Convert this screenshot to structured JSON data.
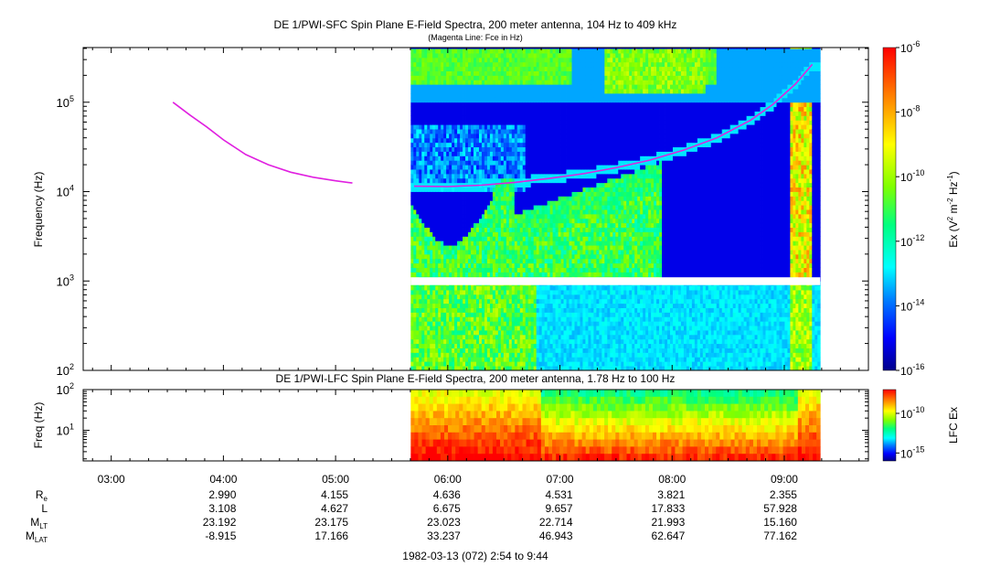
{
  "chart_data": [
    {
      "type": "heatmap",
      "panel": "sfc",
      "title": "DE 1/PWI-SFC  Spin Plane E-Field Spectra, 200 meter antenna, 104 Hz to 409 kHz",
      "subtitle": "(Magenta Line: Fce in Hz)",
      "ylabel": "Frequency (Hz)",
      "yscale": "log",
      "ylim": [
        100,
        409000
      ],
      "y_ticks": [
        {
          "value": 100,
          "base": "10",
          "exp": "2"
        },
        {
          "value": 1000,
          "base": "10",
          "exp": "3"
        },
        {
          "value": 10000,
          "base": "10",
          "exp": "4"
        },
        {
          "value": 100000,
          "base": "10",
          "exp": "5"
        }
      ],
      "xlim_hours": [
        2.75,
        9.75
      ],
      "data_span_hours": [
        5.67,
        9.32
      ],
      "gap_band_hz": [
        900,
        1100
      ],
      "colorbar": {
        "label": "Ex (V2 m-2 Hz-1)",
        "label_parts": [
          "Ex (V",
          "2",
          " m",
          "-2",
          " Hz",
          "-1",
          ")"
        ],
        "scale": "log",
        "range": [
          1e-16,
          1e-06
        ],
        "ticks": [
          {
            "value": 1e-06,
            "base": "10",
            "exp": "-6"
          },
          {
            "value": 1e-08,
            "base": "10",
            "exp": "-8"
          },
          {
            "value": 1e-10,
            "base": "10",
            "exp": "-10"
          },
          {
            "value": 1e-12,
            "base": "10",
            "exp": "-12"
          },
          {
            "value": 1e-14,
            "base": "10",
            "exp": "-14"
          },
          {
            "value": 1e-16,
            "base": "10",
            "exp": "-16"
          }
        ]
      },
      "series": [
        {
          "name": "Fce",
          "color": "#e020e0",
          "x": [
            3.55,
            3.7,
            3.85,
            4.0,
            4.2,
            4.4,
            4.6,
            4.8,
            5.0,
            5.15
          ],
          "y": [
            100000,
            72000,
            53000,
            38000,
            26000,
            20000,
            16500,
            14500,
            13200,
            12500
          ]
        },
        {
          "name": "Fce",
          "color": "#e020e0",
          "x": [
            5.7,
            6.0,
            6.3,
            6.6,
            6.9,
            7.2,
            7.5,
            7.8,
            8.1,
            8.4,
            8.7,
            8.9,
            9.1,
            9.25
          ],
          "y": [
            11500,
            11400,
            11800,
            12700,
            14000,
            15800,
            18500,
            22500,
            29000,
            40000,
            63000,
            95000,
            160000,
            265000
          ]
        }
      ]
    },
    {
      "type": "heatmap",
      "panel": "lfc",
      "title": "DE 1/PWI-LFC  Spin Plane E-Field Spectra, 200 meter antenna, 1.78 Hz to 100 Hz",
      "ylabel": "Freq (Hz)",
      "yscale": "log",
      "ylim": [
        1.78,
        100
      ],
      "y_ticks": [
        {
          "value": 10,
          "base": "10",
          "exp": "1"
        },
        {
          "value": 100,
          "base": "10",
          "exp": "2"
        }
      ],
      "xlim_hours": [
        2.75,
        9.75
      ],
      "data_span_hours": [
        5.67,
        9.32
      ],
      "colorbar": {
        "label": "LFC Ex",
        "scale": "log",
        "range": [
          1e-16,
          1e-07
        ],
        "ticks": [
          {
            "value": 1e-10,
            "base": "10",
            "exp": "-10"
          },
          {
            "value": 1e-15,
            "base": "10",
            "exp": "-15"
          }
        ]
      }
    }
  ],
  "x_axis": {
    "ticks": [
      {
        "hour": 3,
        "label": "03:00"
      },
      {
        "hour": 4,
        "label": "04:00"
      },
      {
        "hour": 5,
        "label": "05:00"
      },
      {
        "hour": 6,
        "label": "06:00"
      },
      {
        "hour": 7,
        "label": "07:00"
      },
      {
        "hour": 8,
        "label": "08:00"
      },
      {
        "hour": 9,
        "label": "09:00"
      }
    ],
    "ephemeris": [
      {
        "label": "R",
        "sub": "e",
        "values": [
          "2.990",
          "4.155",
          "4.636",
          "4.531",
          "3.821",
          "2.355"
        ]
      },
      {
        "label": "L",
        "sub": "",
        "values": [
          "3.108",
          "4.627",
          "6.675",
          "9.657",
          "17.833",
          "57.928"
        ]
      },
      {
        "label": "M",
        "sub": "LT",
        "values": [
          "23.192",
          "23.175",
          "23.023",
          "22.714",
          "21.993",
          "15.160"
        ]
      },
      {
        "label": "M",
        "sub": "LAT",
        "values": [
          "-8.915",
          "17.166",
          "33.237",
          "46.943",
          "62.647",
          "77.162"
        ]
      }
    ],
    "footer": "1982-03-13 (072) 2:54 to 9:44"
  }
}
